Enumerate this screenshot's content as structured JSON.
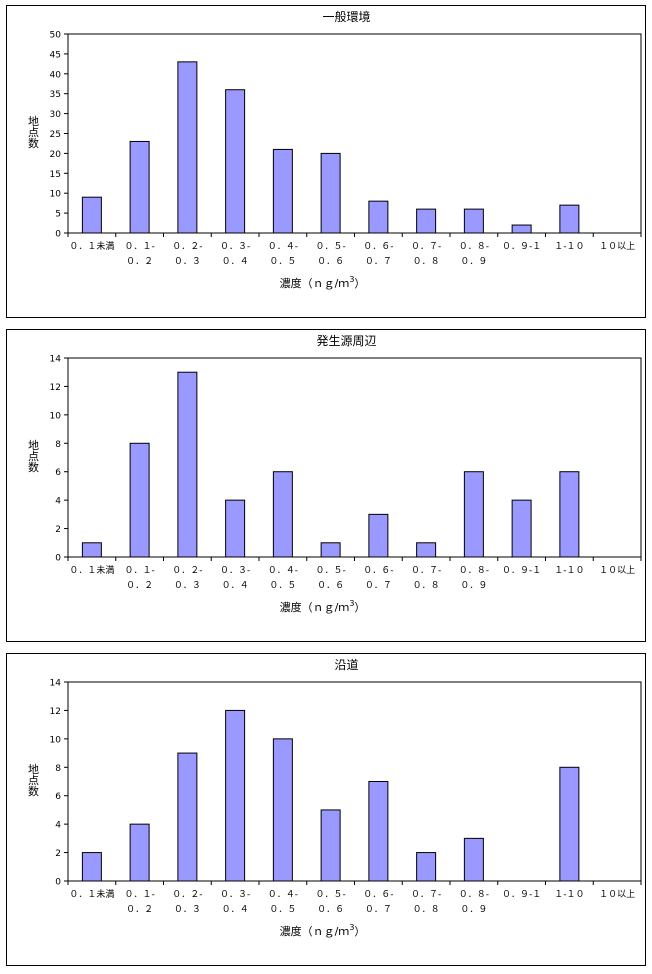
{
  "chart_data": [
    {
      "type": "bar",
      "title": "一般環境",
      "ylabel": "地点数",
      "xlabel": "濃度（ｎｇ/ｍ",
      "xlabel_sup": "3",
      "xlabel_close": "）",
      "categories": [
        [
          "０．１未満"
        ],
        [
          "０．１-",
          "０．２"
        ],
        [
          "０．２-",
          "０．３"
        ],
        [
          "０．３-",
          "０．４"
        ],
        [
          "０．４-",
          "０．５"
        ],
        [
          "０．５-",
          "０．６"
        ],
        [
          "０．６-",
          "０．７"
        ],
        [
          "０．７-",
          "０．８"
        ],
        [
          "０．８-",
          "０．９"
        ],
        [
          "０．９-１"
        ],
        [
          "１-１０"
        ],
        [
          "１０以上"
        ]
      ],
      "values": [
        9,
        23,
        43,
        36,
        21,
        20,
        8,
        6,
        6,
        2,
        7,
        0
      ],
      "ylim": [
        0,
        50
      ],
      "yticks": [
        0,
        5,
        10,
        15,
        20,
        25,
        30,
        35,
        40,
        45,
        50
      ],
      "bar_color": "#9999ff",
      "grid": false
    },
    {
      "type": "bar",
      "title": "発生源周辺",
      "ylabel": "地点数",
      "xlabel": "濃度（ｎｇ/ｍ",
      "xlabel_sup": "3",
      "xlabel_close": "）",
      "categories": [
        [
          "０．１未満"
        ],
        [
          "０．１-",
          "０．２"
        ],
        [
          "０．２-",
          "０．３"
        ],
        [
          "０．３-",
          "０．４"
        ],
        [
          "０．４-",
          "０．５"
        ],
        [
          "０．５-",
          "０．６"
        ],
        [
          "０．６-",
          "０．７"
        ],
        [
          "０．７-",
          "０．８"
        ],
        [
          "０．８-",
          "０．９"
        ],
        [
          "０．９-１"
        ],
        [
          "１-１０"
        ],
        [
          "１０以上"
        ]
      ],
      "values": [
        1,
        8,
        13,
        4,
        6,
        1,
        3,
        1,
        6,
        4,
        6,
        0
      ],
      "ylim": [
        0,
        14
      ],
      "yticks": [
        0,
        2,
        4,
        6,
        8,
        10,
        12,
        14
      ],
      "bar_color": "#9999ff",
      "grid": false
    },
    {
      "type": "bar",
      "title": "沿道",
      "ylabel": "地点数",
      "xlabel": "濃度（ｎｇ/ｍ",
      "xlabel_sup": "3",
      "xlabel_close": "）",
      "categories": [
        [
          "０．１未満"
        ],
        [
          "０．１-",
          "０．２"
        ],
        [
          "０．２-",
          "０．３"
        ],
        [
          "０．３-",
          "０．４"
        ],
        [
          "０．４-",
          "０．５"
        ],
        [
          "０．５-",
          "０．６"
        ],
        [
          "０．６-",
          "０．７"
        ],
        [
          "０．７-",
          "０．８"
        ],
        [
          "０．８-",
          "０．９"
        ],
        [
          "０．９-１"
        ],
        [
          "１-１０"
        ],
        [
          "１０以上"
        ]
      ],
      "values": [
        2,
        4,
        9,
        12,
        10,
        5,
        7,
        2,
        3,
        0,
        8,
        0
      ],
      "ylim": [
        0,
        14
      ],
      "yticks": [
        0,
        2,
        4,
        6,
        8,
        10,
        12,
        14
      ],
      "bar_color": "#9999ff",
      "grid": false
    }
  ]
}
